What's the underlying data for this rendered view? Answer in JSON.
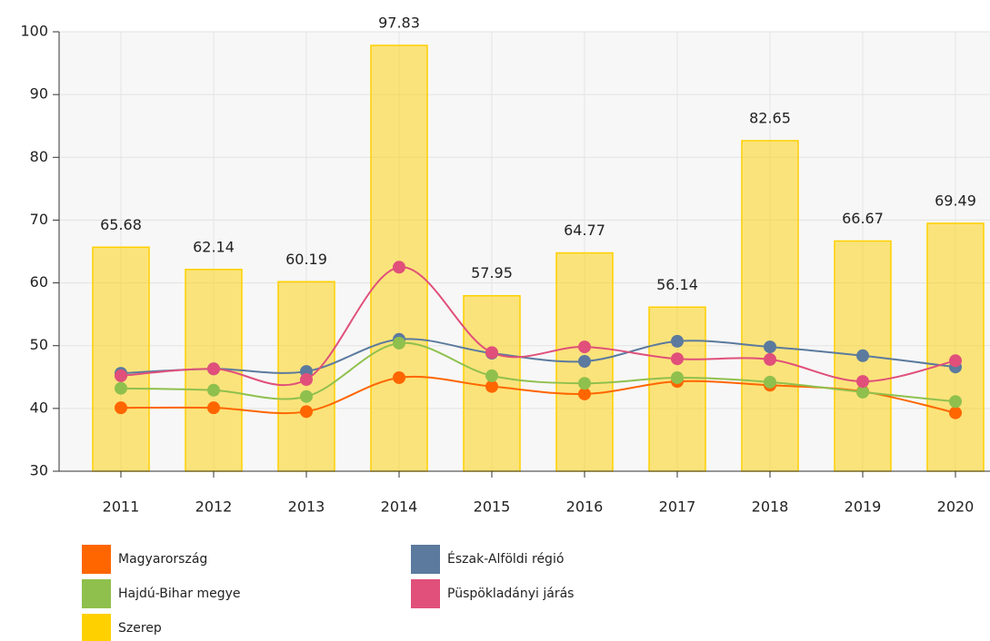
{
  "chart_data": {
    "type": "combo",
    "categories": [
      "2011",
      "2012",
      "2013",
      "2014",
      "2015",
      "2016",
      "2017",
      "2018",
      "2019",
      "2020"
    ],
    "ylim": [
      30,
      100
    ],
    "yticks": [
      30,
      40,
      50,
      60,
      70,
      80,
      90,
      100
    ],
    "grid": true,
    "smooth": true,
    "legend": "bottom",
    "series": [
      {
        "name": "Magyarország",
        "type": "line",
        "color": "#ff6600",
        "values": [
          40.1,
          40.1,
          39.5,
          44.9,
          43.5,
          42.3,
          44.3,
          43.7,
          42.7,
          39.3
        ]
      },
      {
        "name": "Észak-Alföldi régió",
        "type": "line",
        "color": "#5b7a9e",
        "values": [
          45.6,
          46.3,
          45.9,
          51.0,
          48.8,
          47.5,
          50.7,
          49.8,
          48.4,
          46.6
        ]
      },
      {
        "name": "Hajdú-Bihar megye",
        "type": "line",
        "color": "#8fc04d",
        "values": [
          43.2,
          42.9,
          41.9,
          50.4,
          45.2,
          44.0,
          44.9,
          44.2,
          42.6,
          41.1
        ]
      },
      {
        "name": "Püspökladányi járás",
        "type": "line",
        "color": "#e0507a",
        "values": [
          45.2,
          46.3,
          44.6,
          62.5,
          48.9,
          49.8,
          47.9,
          47.8,
          44.3,
          47.6
        ]
      },
      {
        "name": "Szerep",
        "type": "bar",
        "color": "#ffd000",
        "values": [
          65.68,
          62.14,
          60.19,
          97.83,
          57.95,
          64.77,
          56.14,
          82.65,
          66.67,
          69.49
        ]
      }
    ]
  }
}
